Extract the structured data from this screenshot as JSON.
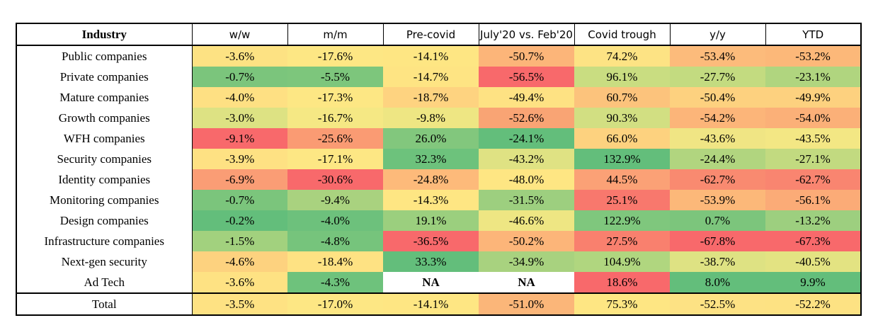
{
  "headers": [
    "Industry",
    "w/w",
    "m/m",
    "Pre-covid",
    "July'20 vs. Feb'20",
    "Covid trough",
    "y/y",
    "YTD"
  ],
  "rows": [
    {
      "name": "Public companies",
      "cells": [
        {
          "v": "-3.6%",
          "c": "#fde283"
        },
        {
          "v": "-17.6%",
          "c": "#fde784"
        },
        {
          "v": "-14.1%",
          "c": "#fee683"
        },
        {
          "v": "-50.7%",
          "c": "#fcb579"
        },
        {
          "v": "74.2%",
          "c": "#fde384"
        },
        {
          "v": "-53.4%",
          "c": "#fcbb7b"
        },
        {
          "v": "-53.2%",
          "c": "#fcb879"
        }
      ]
    },
    {
      "name": "Private companies",
      "cells": [
        {
          "v": "-0.7%",
          "c": "#7bc57c"
        },
        {
          "v": "-5.5%",
          "c": "#7dc67c"
        },
        {
          "v": "-14.7%",
          "c": "#fee483"
        },
        {
          "v": "-56.5%",
          "c": "#f8696b"
        },
        {
          "v": "96.1%",
          "c": "#c9dd81"
        },
        {
          "v": "-27.7%",
          "c": "#c3db80"
        },
        {
          "v": "-23.1%",
          "c": "#b0d57f"
        }
      ]
    },
    {
      "name": "Mature companies",
      "cells": [
        {
          "v": "-4.0%",
          "c": "#fee083"
        },
        {
          "v": "-17.3%",
          "c": "#fde784"
        },
        {
          "v": "-18.7%",
          "c": "#fed380"
        },
        {
          "v": "-49.4%",
          "c": "#fee283"
        },
        {
          "v": "60.7%",
          "c": "#fcc37c"
        },
        {
          "v": "-50.4%",
          "c": "#fdd17f"
        },
        {
          "v": "-49.9%",
          "c": "#fdd17f"
        }
      ]
    },
    {
      "name": "Growth companies",
      "cells": [
        {
          "v": "-3.0%",
          "c": "#dde283"
        },
        {
          "v": "-16.7%",
          "c": "#f5e884"
        },
        {
          "v": "-9.8%",
          "c": "#eee683"
        },
        {
          "v": "-52.6%",
          "c": "#f9a474"
        },
        {
          "v": "90.3%",
          "c": "#d2df82"
        },
        {
          "v": "-54.2%",
          "c": "#fcb579"
        },
        {
          "v": "-54.0%",
          "c": "#fbb078"
        }
      ]
    },
    {
      "name": "WFH companies",
      "cells": [
        {
          "v": "-9.1%",
          "c": "#f8696b"
        },
        {
          "v": "-25.6%",
          "c": "#fa9b73"
        },
        {
          "v": "26.0%",
          "c": "#82c77d"
        },
        {
          "v": "-24.1%",
          "c": "#63be7b"
        },
        {
          "v": "66.0%",
          "c": "#fdd27f"
        },
        {
          "v": "-43.6%",
          "c": "#f0e584"
        },
        {
          "v": "-43.5%",
          "c": "#f3e784"
        }
      ]
    },
    {
      "name": "Security companies",
      "cells": [
        {
          "v": "-3.9%",
          "c": "#fee183"
        },
        {
          "v": "-17.1%",
          "c": "#fde784"
        },
        {
          "v": "32.3%",
          "c": "#6dc27c"
        },
        {
          "v": "-43.2%",
          "c": "#dfe283"
        },
        {
          "v": "132.9%",
          "c": "#63be7b"
        },
        {
          "v": "-24.4%",
          "c": "#b1d57f"
        },
        {
          "v": "-27.1%",
          "c": "#c2da80"
        }
      ]
    },
    {
      "name": "Identity companies",
      "cells": [
        {
          "v": "-6.9%",
          "c": "#fa9d75"
        },
        {
          "v": "-30.6%",
          "c": "#f8696b"
        },
        {
          "v": "-24.8%",
          "c": "#fdba7a"
        },
        {
          "v": "-48.0%",
          "c": "#fee683"
        },
        {
          "v": "44.5%",
          "c": "#fba176"
        },
        {
          "v": "-62.7%",
          "c": "#f98a70"
        },
        {
          "v": "-62.7%",
          "c": "#f98570"
        }
      ]
    },
    {
      "name": "Monitoring companies",
      "cells": [
        {
          "v": "-0.7%",
          "c": "#7bc57c"
        },
        {
          "v": "-9.4%",
          "c": "#a9d27f"
        },
        {
          "v": "-14.3%",
          "c": "#fee683"
        },
        {
          "v": "-31.5%",
          "c": "#9dcf7f"
        },
        {
          "v": "25.1%",
          "c": "#f8786d"
        },
        {
          "v": "-53.9%",
          "c": "#fcb879"
        },
        {
          "v": "-56.1%",
          "c": "#fbab77"
        }
      ]
    },
    {
      "name": "Design companies",
      "cells": [
        {
          "v": "-0.2%",
          "c": "#63be7b"
        },
        {
          "v": "-4.0%",
          "c": "#6dc17c"
        },
        {
          "v": "19.1%",
          "c": "#9bcf7e"
        },
        {
          "v": "-46.6%",
          "c": "#eee683"
        },
        {
          "v": "122.9%",
          "c": "#7fc77d"
        },
        {
          "v": "0.7%",
          "c": "#7cc57c"
        },
        {
          "v": "-13.2%",
          "c": "#9dcf7f"
        }
      ]
    },
    {
      "name": "Infrastructure companies",
      "cells": [
        {
          "v": "-1.5%",
          "c": "#a2d17e"
        },
        {
          "v": "-4.8%",
          "c": "#76c47c"
        },
        {
          "v": "-36.5%",
          "c": "#f8696b"
        },
        {
          "v": "-50.2%",
          "c": "#fcb579"
        },
        {
          "v": "27.5%",
          "c": "#f9806e"
        },
        {
          "v": "-67.8%",
          "c": "#f8696b"
        },
        {
          "v": "-67.3%",
          "c": "#f8696b"
        }
      ]
    },
    {
      "name": "Next-gen security",
      "cells": [
        {
          "v": "-4.6%",
          "c": "#fdd27f"
        },
        {
          "v": "-18.4%",
          "c": "#fee283"
        },
        {
          "v": "33.3%",
          "c": "#63be7b"
        },
        {
          "v": "-34.9%",
          "c": "#a8d27f"
        },
        {
          "v": "104.9%",
          "c": "#b0d67f"
        },
        {
          "v": "-38.7%",
          "c": "#dee283"
        },
        {
          "v": "-40.5%",
          "c": "#e3e382"
        }
      ]
    },
    {
      "name": "Ad Tech",
      "cells": [
        {
          "v": "-3.6%",
          "c": "#fee283"
        },
        {
          "v": "-4.3%",
          "c": "#6ec27c"
        },
        {
          "v": "NA",
          "c": "#ffffff",
          "na": true
        },
        {
          "v": "NA",
          "c": "#ffffff",
          "na": true
        },
        {
          "v": "18.6%",
          "c": "#f8696b"
        },
        {
          "v": "8.0%",
          "c": "#63be7b"
        },
        {
          "v": "9.9%",
          "c": "#63be7b"
        }
      ]
    }
  ],
  "total": {
    "name": "Total",
    "cells": [
      {
        "v": "-3.5%",
        "c": "#fee283"
      },
      {
        "v": "-17.0%",
        "c": "#fde784"
      },
      {
        "v": "-14.1%",
        "c": "#fee683"
      },
      {
        "v": "-51.0%",
        "c": "#fbb679"
      },
      {
        "v": "75.3%",
        "c": "#fee683"
      },
      {
        "v": "-52.5%",
        "c": "#fde284"
      },
      {
        "v": "-52.2%",
        "c": "#fde283"
      }
    ]
  }
}
